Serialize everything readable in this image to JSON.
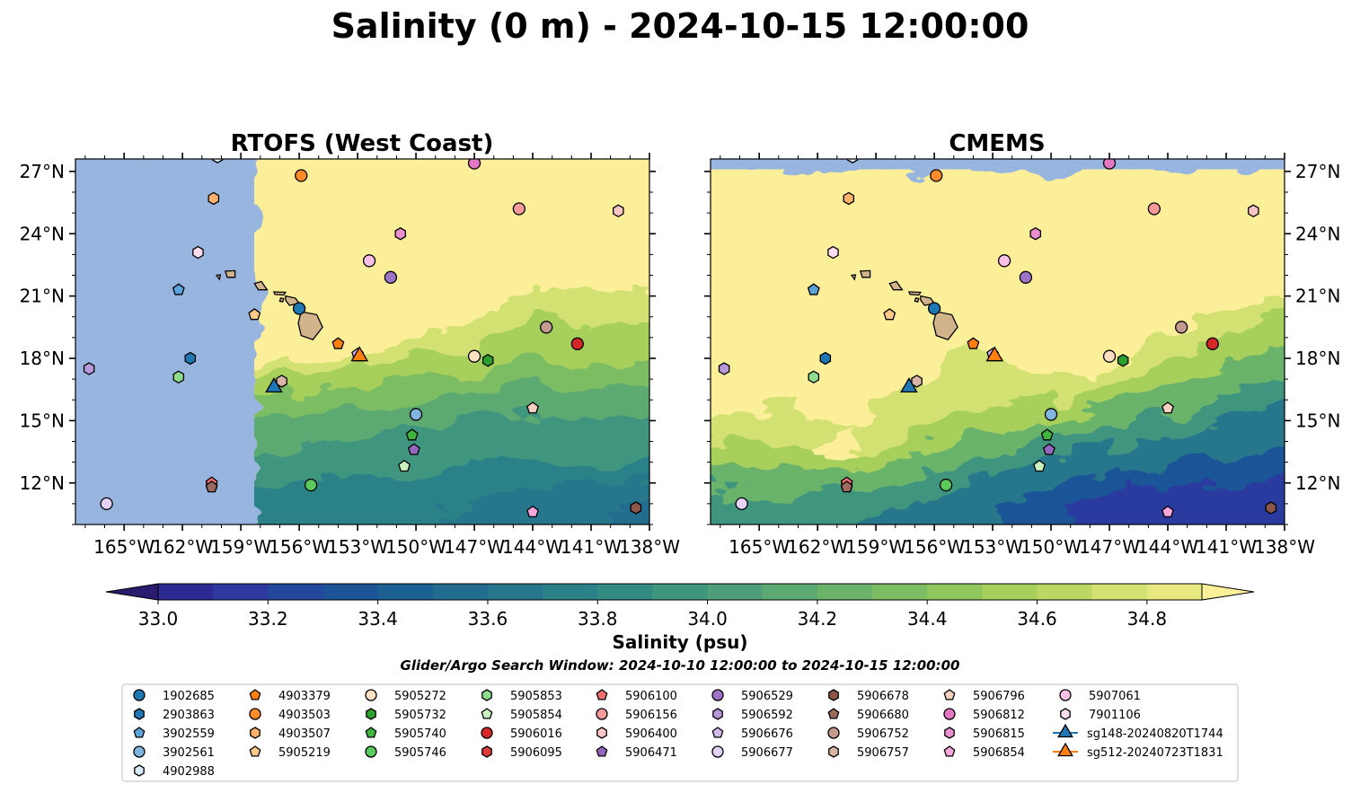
{
  "figure": {
    "title": "Salinity (0 m) - 2024-10-15 12:00:00",
    "colorbar_label": "Salinity (psu)",
    "search_window": "Glider/Argo Search Window: 2024-10-10 12:00:00 to 2024-10-15 12:00:00"
  },
  "colors": {
    "ocean": "#98b5e0",
    "land": "#d2b48c",
    "salinity_levels": [
      "#2b1b6e",
      "#2e2a94",
      "#2c3aa0",
      "#22479d",
      "#1c5497",
      "#1d6193",
      "#226c8f",
      "#26778c",
      "#2b8188",
      "#348b84",
      "#40957f",
      "#4e9f79",
      "#5ca972",
      "#6bb36b",
      "#7cbd64",
      "#90c65e",
      "#a6cf5c",
      "#bcd862",
      "#d2e172",
      "#e8e981",
      "#fbef9a"
    ]
  },
  "colorbar": {
    "ticks": [
      "33.0",
      "33.2",
      "33.4",
      "33.6",
      "33.8",
      "34.0",
      "34.2",
      "34.4",
      "34.6",
      "34.8"
    ]
  },
  "chart_data": [
    {
      "type": "heatmap",
      "title": "RTOFS (West Coast)",
      "xlabel": "",
      "ylabel": "",
      "xlim": [
        -167.5,
        -138
      ],
      "ylim": [
        10,
        27.6
      ],
      "xticks": [
        "165°W",
        "162°W",
        "159°W",
        "156°W",
        "153°W",
        "150°W",
        "147°W",
        "144°W",
        "141°W",
        "138°W"
      ],
      "yticks": [
        "27°N",
        "24°N",
        "21°N",
        "18°N",
        "15°N",
        "12°N"
      ],
      "model_domain_west_edge_lon": -158.3,
      "colorbar_range": [
        33.0,
        34.9
      ]
    },
    {
      "type": "heatmap",
      "title": "CMEMS",
      "xlabel": "",
      "ylabel": "",
      "xlim": [
        -167.5,
        -138
      ],
      "ylim": [
        10,
        27.6
      ],
      "xticks": [
        "165°W",
        "162°W",
        "159°W",
        "156°W",
        "153°W",
        "150°W",
        "147°W",
        "144°W",
        "141°W",
        "138°W"
      ],
      "yticks": [
        "27°N",
        "24°N",
        "21°N",
        "18°N",
        "15°N",
        "12°N"
      ],
      "model_domain_north_edge_lat": 27.1,
      "colorbar_range": [
        33.0,
        34.9
      ]
    }
  ],
  "legend": {
    "items": [
      {
        "label": "1902685",
        "marker": "circle",
        "color": "#1f77b4"
      },
      {
        "label": "2903863",
        "marker": "hexagon",
        "color": "#1f77b4"
      },
      {
        "label": "3902559",
        "marker": "pentagon",
        "color": "#5ba3d9"
      },
      {
        "label": "3902561",
        "marker": "circle",
        "color": "#7fb5e0"
      },
      {
        "label": "4902988",
        "marker": "hexagon",
        "color": "#d6ecf7"
      },
      {
        "label": "4903379",
        "marker": "pentagon",
        "color": "#ff7f0e"
      },
      {
        "label": "4903503",
        "marker": "circle",
        "color": "#ff8c2a"
      },
      {
        "label": "4903507",
        "marker": "hexagon",
        "color": "#ffb26b"
      },
      {
        "label": "5905219",
        "marker": "pentagon",
        "color": "#ffc98a"
      },
      {
        "label": "5905272",
        "marker": "circle",
        "color": "#ffe0c4"
      },
      {
        "label": "5905732",
        "marker": "hexagon",
        "color": "#2ca02c"
      },
      {
        "label": "5905740",
        "marker": "pentagon",
        "color": "#3fb43f"
      },
      {
        "label": "5905746",
        "marker": "circle",
        "color": "#5cc95c"
      },
      {
        "label": "5905853",
        "marker": "hexagon",
        "color": "#8fdc8f"
      },
      {
        "label": "5905854",
        "marker": "pentagon",
        "color": "#c9f2c0"
      },
      {
        "label": "5906016",
        "marker": "circle",
        "color": "#d62728"
      },
      {
        "label": "5906095",
        "marker": "hexagon",
        "color": "#e03b3b"
      },
      {
        "label": "5906100",
        "marker": "pentagon",
        "color": "#f06e6e"
      },
      {
        "label": "5906156",
        "marker": "circle",
        "color": "#f59a9a"
      },
      {
        "label": "5906400",
        "marker": "hexagon",
        "color": "#fac5c5"
      },
      {
        "label": "5906471",
        "marker": "pentagon",
        "color": "#9467bd"
      },
      {
        "label": "5906529",
        "marker": "circle",
        "color": "#9e74c7"
      },
      {
        "label": "5906592",
        "marker": "hexagon",
        "color": "#b796d9"
      },
      {
        "label": "5906676",
        "marker": "pentagon",
        "color": "#d2b8ed"
      },
      {
        "label": "5906677",
        "marker": "circle",
        "color": "#e5d3f7"
      },
      {
        "label": "5906678",
        "marker": "hexagon",
        "color": "#8c564b"
      },
      {
        "label": "5906680",
        "marker": "pentagon",
        "color": "#9c6a5f"
      },
      {
        "label": "5906752",
        "marker": "circle",
        "color": "#c49c8f"
      },
      {
        "label": "5906757",
        "marker": "hexagon",
        "color": "#d9b5a8"
      },
      {
        "label": "5906796",
        "marker": "pentagon",
        "color": "#f5d0c0"
      },
      {
        "label": "5906812",
        "marker": "circle",
        "color": "#e377c2"
      },
      {
        "label": "5906815",
        "marker": "hexagon",
        "color": "#ea8fd0"
      },
      {
        "label": "5906854",
        "marker": "pentagon",
        "color": "#f5a6dd"
      },
      {
        "label": "5907061",
        "marker": "circle",
        "color": "#f9c0e6"
      },
      {
        "label": "7901106",
        "marker": "hexagon",
        "color": "#fcdcef"
      },
      {
        "label": "sg148-20240820T1744",
        "marker": "triangle",
        "color": "#1f77b4"
      },
      {
        "label": "sg512-20240723T1831",
        "marker": "triangle",
        "color": "#ff7f0e"
      }
    ]
  },
  "floats": [
    {
      "id": "1902685",
      "lon": -156.0,
      "lat": 20.4
    },
    {
      "id": "2903863",
      "lon": -161.6,
      "lat": 18.0
    },
    {
      "id": "3902559",
      "lon": -162.2,
      "lat": 21.3
    },
    {
      "id": "3902561",
      "lon": -150.0,
      "lat": 15.3
    },
    {
      "id": "4902988",
      "lon": -160.2,
      "lat": 27.7
    },
    {
      "id": "4903379",
      "lon": -154.0,
      "lat": 18.7
    },
    {
      "id": "4903503",
      "lon": -155.9,
      "lat": 26.8
    },
    {
      "id": "4903507",
      "lon": -160.4,
      "lat": 25.7
    },
    {
      "id": "5905219",
      "lon": -158.3,
      "lat": 20.1
    },
    {
      "id": "5905272",
      "lon": -147.0,
      "lat": 18.1
    },
    {
      "id": "5905732",
      "lon": -146.3,
      "lat": 17.9
    },
    {
      "id": "5905740",
      "lon": -150.2,
      "lat": 14.3
    },
    {
      "id": "5905746",
      "lon": -155.4,
      "lat": 11.9
    },
    {
      "id": "5905853",
      "lon": -162.2,
      "lat": 17.1
    },
    {
      "id": "5905854",
      "lon": -150.6,
      "lat": 12.8
    },
    {
      "id": "5906016",
      "lon": -141.7,
      "lat": 18.7
    },
    {
      "id": "5906095",
      "lon": -160.5,
      "lat": 11.9
    },
    {
      "id": "5906100",
      "lon": -160.5,
      "lat": 12.0
    },
    {
      "id": "5906156",
      "lon": -144.7,
      "lat": 25.2
    },
    {
      "id": "5906400",
      "lon": -139.6,
      "lat": 25.1
    },
    {
      "id": "5906471",
      "lon": -150.1,
      "lat": 13.6
    },
    {
      "id": "5906529",
      "lon": -151.3,
      "lat": 21.9
    },
    {
      "id": "5906592",
      "lon": -166.8,
      "lat": 17.5
    },
    {
      "id": "5906676",
      "lon": -153.0,
      "lat": 18.2
    },
    {
      "id": "5906677",
      "lon": -165.9,
      "lat": 11.0
    },
    {
      "id": "5906678",
      "lon": -138.7,
      "lat": 10.8
    },
    {
      "id": "5906680",
      "lon": -160.5,
      "lat": 11.8
    },
    {
      "id": "5906752",
      "lon": -143.3,
      "lat": 19.5
    },
    {
      "id": "5906757",
      "lon": -156.9,
      "lat": 16.9
    },
    {
      "id": "5906796",
      "lon": -144.0,
      "lat": 15.6
    },
    {
      "id": "5906812",
      "lon": -147.0,
      "lat": 27.4
    },
    {
      "id": "5906815",
      "lon": -150.8,
      "lat": 24.0
    },
    {
      "id": "5906854",
      "lon": -144.0,
      "lat": 10.6
    },
    {
      "id": "5907061",
      "lon": -152.4,
      "lat": 22.7
    },
    {
      "id": "7901106",
      "lon": -161.2,
      "lat": 23.1
    },
    {
      "id": "sg148-20240820T1744",
      "lon": -157.3,
      "lat": 16.6
    },
    {
      "id": "sg512-20240723T1831",
      "lon": -152.9,
      "lat": 18.1
    }
  ]
}
